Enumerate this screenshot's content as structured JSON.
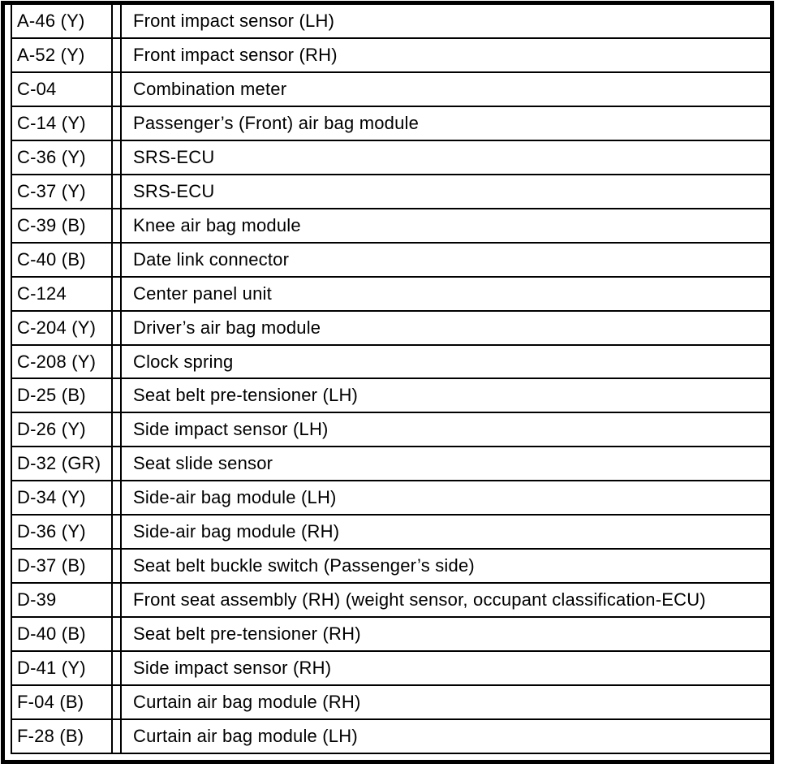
{
  "document": {
    "kind": "connector-table",
    "colors": {
      "background": "#ffffff",
      "ink": "#000000"
    }
  },
  "table": {
    "columns": [
      "connector_code",
      "component_description"
    ],
    "rows": [
      {
        "code": "A-46 (Y)",
        "description": "Front impact sensor (LH)"
      },
      {
        "code": "A-52 (Y)",
        "description": "Front impact sensor (RH)"
      },
      {
        "code": "C-04",
        "description": "Combination meter"
      },
      {
        "code": "C-14 (Y)",
        "description": "Passenger’s (Front) air bag module"
      },
      {
        "code": "C-36 (Y)",
        "description": "SRS-ECU"
      },
      {
        "code": "C-37 (Y)",
        "description": "SRS-ECU"
      },
      {
        "code": "C-39 (B)",
        "description": "Knee air bag module"
      },
      {
        "code": "C-40 (B)",
        "description": "Date link connector"
      },
      {
        "code": "C-124",
        "description": "Center panel unit"
      },
      {
        "code": "C-204 (Y)",
        "description": "Driver’s air bag module"
      },
      {
        "code": "C-208 (Y)",
        "description": "Clock spring"
      },
      {
        "code": "D-25 (B)",
        "description": "Seat belt pre-tensioner (LH)"
      },
      {
        "code": "D-26 (Y)",
        "description": "Side impact sensor (LH)"
      },
      {
        "code": "D-32 (GR)",
        "description": "Seat slide sensor"
      },
      {
        "code": "D-34 (Y)",
        "description": "Side-air bag module (LH)"
      },
      {
        "code": "D-36 (Y)",
        "description": "Side-air bag module (RH)"
      },
      {
        "code": "D-37 (B)",
        "description": "Seat belt buckle switch (Passenger’s side)"
      },
      {
        "code": "D-39",
        "description": "Front seat assembly (RH) (weight sensor, occupant classification-ECU)"
      },
      {
        "code": "D-40 (B)",
        "description": "Seat belt pre-tensioner (RH)"
      },
      {
        "code": "D-41 (Y)",
        "description": "Side impact sensor (RH)"
      },
      {
        "code": "F-04 (B)",
        "description": "Curtain air bag module (RH)"
      },
      {
        "code": "F-28 (B)",
        "description": "Curtain air bag module (LH)"
      }
    ]
  }
}
